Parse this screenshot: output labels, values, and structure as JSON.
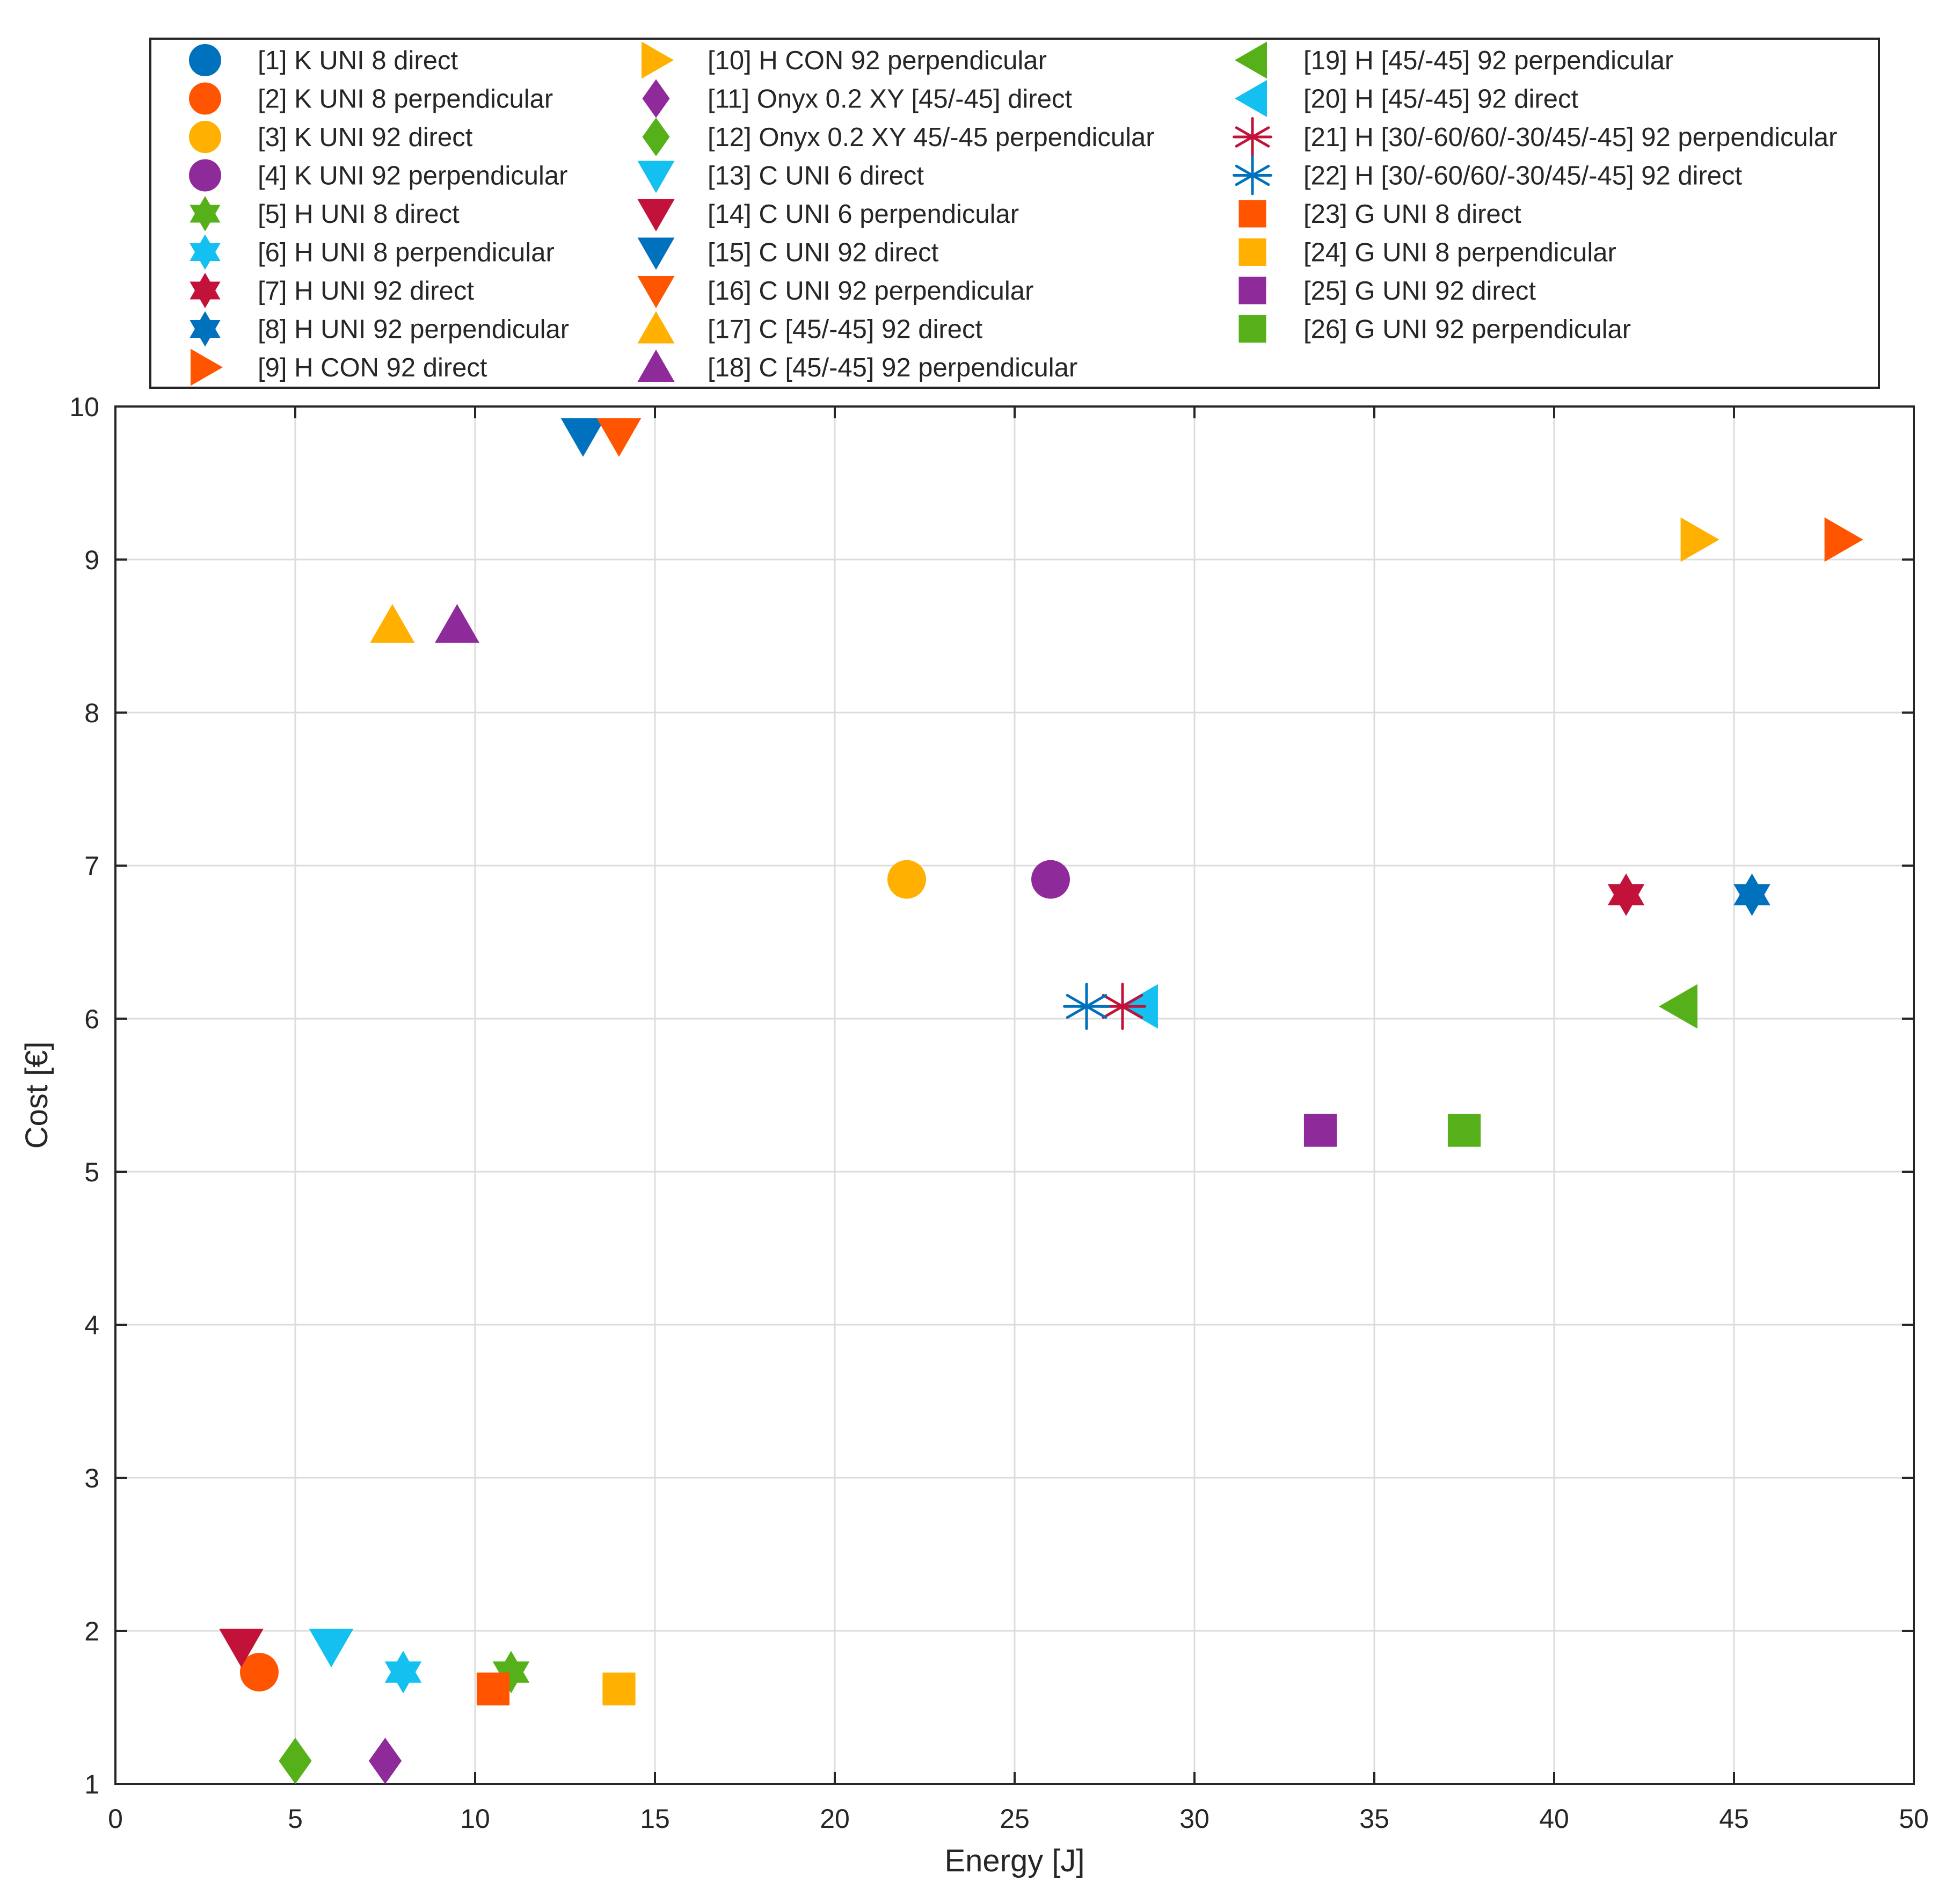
{
  "chart_data": {
    "type": "scatter",
    "xlabel": "Energy [J]",
    "ylabel": "Cost [€]",
    "xlim": [
      0,
      50
    ],
    "ylim": [
      1,
      10
    ],
    "xticks": [
      0,
      5,
      10,
      15,
      20,
      25,
      30,
      35,
      40,
      45,
      50
    ],
    "yticks": [
      1,
      2,
      3,
      4,
      5,
      6,
      7,
      8,
      9,
      10
    ],
    "grid": true,
    "legend_position": "top",
    "colors": {
      "blue": "#0072BD",
      "orange": "#FF5500",
      "yellow": "#FFB000",
      "purple": "#8E2A9A",
      "green": "#56B01A",
      "cyan": "#14C0F0",
      "red": "#C2123A"
    },
    "series": [
      {
        "label": "[1] K UNI 8 direct",
        "marker": "circle",
        "color": "blue",
        "points": []
      },
      {
        "label": "[2] K UNI 8 perpendicular",
        "marker": "circle",
        "color": "orange",
        "points": [
          [
            4.0,
            1.73
          ]
        ]
      },
      {
        "label": "[3] K UNI 92 direct",
        "marker": "circle",
        "color": "yellow",
        "points": [
          [
            22.0,
            6.91
          ]
        ]
      },
      {
        "label": "[4] K UNI 92 perpendicular",
        "marker": "circle",
        "color": "purple",
        "points": [
          [
            26.0,
            6.91
          ]
        ]
      },
      {
        "label": "[5] H UNI 8 direct",
        "marker": "hexagram",
        "color": "green",
        "points": [
          [
            11.0,
            1.73
          ]
        ]
      },
      {
        "label": "[6] H UNI 8 perpendicular",
        "marker": "hexagram",
        "color": "cyan",
        "points": [
          [
            8.0,
            1.73
          ]
        ]
      },
      {
        "label": "[7] H UNI 92 direct",
        "marker": "hexagram",
        "color": "red",
        "points": [
          [
            42.0,
            6.81
          ]
        ]
      },
      {
        "label": "[8] H UNI 92 perpendicular",
        "marker": "hexagram",
        "color": "blue",
        "points": [
          [
            45.5,
            6.81
          ]
        ]
      },
      {
        "label": "[9] H CON 92 direct",
        "marker": "triangle-right",
        "color": "orange",
        "points": [
          [
            48.0,
            9.13
          ]
        ]
      },
      {
        "label": "[10] H CON 92 perpendicular",
        "marker": "triangle-right",
        "color": "yellow",
        "points": [
          [
            44.0,
            9.13
          ]
        ]
      },
      {
        "label": "[11] Onyx 0.2 XY [45/-45] direct",
        "marker": "diamond",
        "color": "purple",
        "points": [
          [
            7.5,
            1.15
          ]
        ]
      },
      {
        "label": "[12] Onyx 0.2 XY 45/-45 perpendicular",
        "marker": "diamond",
        "color": "green",
        "points": [
          [
            5.0,
            1.15
          ]
        ]
      },
      {
        "label": "[13] C UNI 6 direct",
        "marker": "triangle-down",
        "color": "cyan",
        "points": [
          [
            6.0,
            1.9
          ]
        ]
      },
      {
        "label": "[14] C UNI 6 perpendicular",
        "marker": "triangle-down",
        "color": "red",
        "points": [
          [
            3.5,
            1.9
          ]
        ]
      },
      {
        "label": "[15] C UNI 92 direct",
        "marker": "triangle-down",
        "color": "blue",
        "points": [
          [
            13.0,
            9.81
          ]
        ]
      },
      {
        "label": "[16] C UNI 92 perpendicular",
        "marker": "triangle-down",
        "color": "orange",
        "points": [
          [
            14.0,
            9.81
          ]
        ]
      },
      {
        "label": "[17] C [45/-45] 92 direct",
        "marker": "triangle-up",
        "color": "yellow",
        "points": [
          [
            7.7,
            8.57
          ]
        ]
      },
      {
        "label": "[18] C [45/-45] 92 perpendicular",
        "marker": "triangle-up",
        "color": "purple",
        "points": [
          [
            9.5,
            8.57
          ]
        ]
      },
      {
        "label": "[19] H [45/-45] 92 perpendicular",
        "marker": "triangle-left",
        "color": "green",
        "points": [
          [
            43.5,
            6.08
          ]
        ]
      },
      {
        "label": "[20] H [45/-45] 92 direct",
        "marker": "triangle-left",
        "color": "cyan",
        "points": [
          [
            28.5,
            6.08
          ]
        ]
      },
      {
        "label": "[21] H [30/-60/60/-30/45/-45] 92 perpendicular",
        "marker": "asterisk",
        "color": "red",
        "points": [
          [
            28.0,
            6.08
          ]
        ]
      },
      {
        "label": "[22] H [30/-60/60/-30/45/-45] 92 direct",
        "marker": "asterisk",
        "color": "blue",
        "points": [
          [
            27.0,
            6.08
          ]
        ]
      },
      {
        "label": "[23] G UNI 8 direct",
        "marker": "square",
        "color": "orange",
        "points": [
          [
            10.5,
            1.62
          ]
        ]
      },
      {
        "label": "[24] G UNI 8 perpendicular",
        "marker": "square",
        "color": "yellow",
        "points": [
          [
            14.0,
            1.62
          ]
        ]
      },
      {
        "label": "[25] G UNI 92 direct",
        "marker": "square",
        "color": "purple",
        "points": [
          [
            33.5,
            5.27
          ]
        ]
      },
      {
        "label": "[26] G UNI 92 perpendicular",
        "marker": "square",
        "color": "green",
        "points": [
          [
            37.5,
            5.27
          ]
        ]
      }
    ]
  }
}
